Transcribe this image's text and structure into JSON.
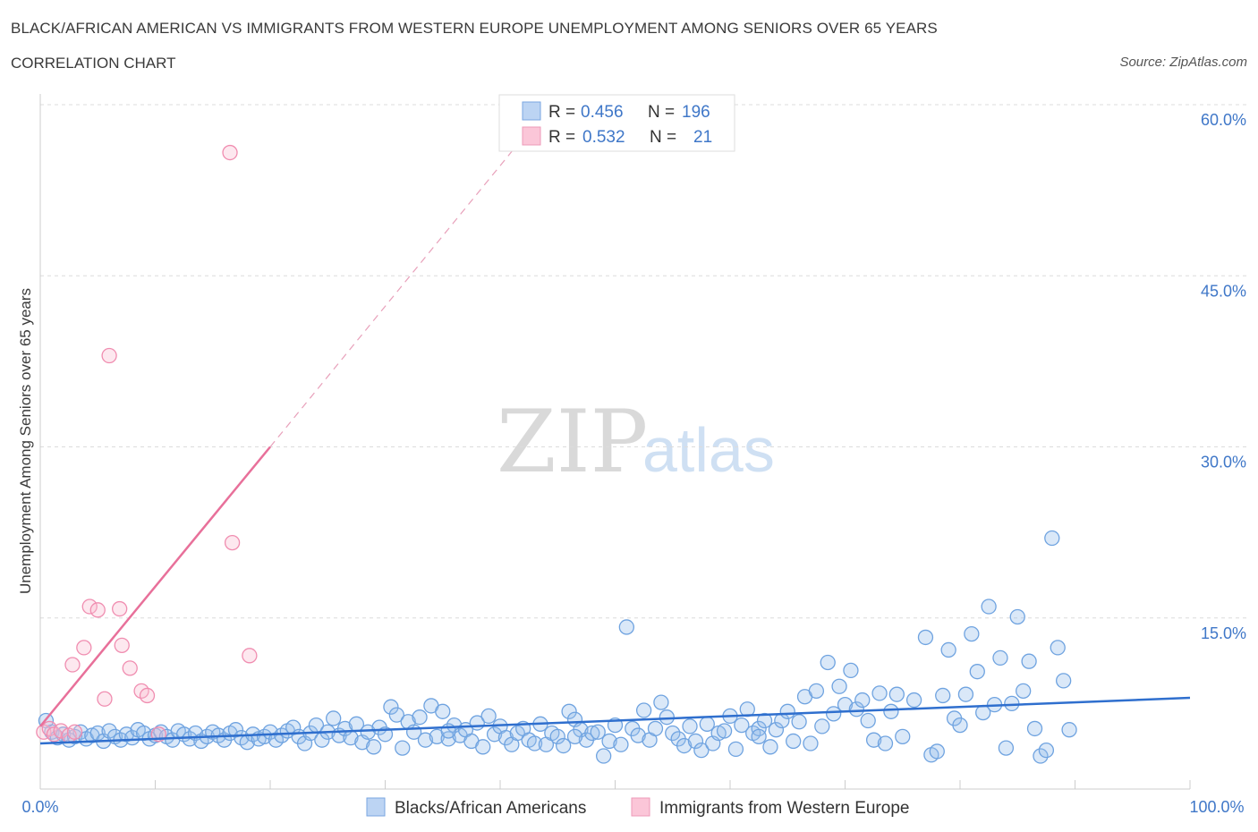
{
  "header": {
    "title": "BLACK/AFRICAN AMERICAN VS IMMIGRANTS FROM WESTERN EUROPE UNEMPLOYMENT AMONG SENIORS OVER 65 YEARS",
    "subtitle": "CORRELATION CHART",
    "source": "Source: ZipAtlas.com"
  },
  "watermark": {
    "zip": "ZIP",
    "atlas": "atlas"
  },
  "legend_top": {
    "rows": [
      {
        "r_label": "R =",
        "r_value": "0.456",
        "n_label": "N =",
        "n_value": "196"
      },
      {
        "r_label": "R =",
        "r_value": "0.532",
        "n_label": "N =",
        "n_value": "21"
      }
    ]
  },
  "legend_bottom": {
    "series1": "Blacks/African Americans",
    "series2": "Immigrants from Western Europe"
  },
  "chart_data": {
    "type": "scatter",
    "title": "BLACK/AFRICAN AMERICAN VS IMMIGRANTS FROM WESTERN EUROPE UNEMPLOYMENT AMONG SENIORS OVER 65 YEARS",
    "xlabel": "",
    "ylabel": "Unemployment Among Seniors over 65 years",
    "xlim": [
      0,
      100
    ],
    "ylim": [
      0,
      60
    ],
    "x_tick_labels": [
      "0.0%",
      "100.0%"
    ],
    "y_ticks": [
      15,
      30,
      45,
      60
    ],
    "y_tick_labels": [
      "15.0%",
      "30.0%",
      "45.0%",
      "60.0%"
    ],
    "colors": {
      "blue": "#6fa3e0",
      "blue_line": "#2f6fce",
      "pink": "#f08db0",
      "pink_line": "#e8709a"
    },
    "series": [
      {
        "name": "Blacks/African Americans",
        "R": 0.456,
        "N": 196,
        "trend": {
          "x": [
            0,
            100
          ],
          "y": [
            4.0,
            8.0
          ]
        },
        "points": [
          [
            0.5,
            6.0
          ],
          [
            1.0,
            5.0
          ],
          [
            1.5,
            4.5
          ],
          [
            2.0,
            4.8
          ],
          [
            2.5,
            4.3
          ],
          [
            3.0,
            4.6
          ],
          [
            3.5,
            5.0
          ],
          [
            4.0,
            4.4
          ],
          [
            4.5,
            4.7
          ],
          [
            5.0,
            4.9
          ],
          [
            5.5,
            4.2
          ],
          [
            6.0,
            5.1
          ],
          [
            6.5,
            4.6
          ],
          [
            7.0,
            4.3
          ],
          [
            7.5,
            4.8
          ],
          [
            8.0,
            4.5
          ],
          [
            8.5,
            5.2
          ],
          [
            9.0,
            4.9
          ],
          [
            9.5,
            4.4
          ],
          [
            10.0,
            4.7
          ],
          [
            10.5,
            5.0
          ],
          [
            11.0,
            4.6
          ],
          [
            11.5,
            4.3
          ],
          [
            12.0,
            5.1
          ],
          [
            12.5,
            4.8
          ],
          [
            13.0,
            4.4
          ],
          [
            13.5,
            4.9
          ],
          [
            14.0,
            4.2
          ],
          [
            14.5,
            4.6
          ],
          [
            15.0,
            5.0
          ],
          [
            15.5,
            4.7
          ],
          [
            16.0,
            4.3
          ],
          [
            16.5,
            4.9
          ],
          [
            17.0,
            5.2
          ],
          [
            17.5,
            4.5
          ],
          [
            18.0,
            4.1
          ],
          [
            18.5,
            4.8
          ],
          [
            19.0,
            4.4
          ],
          [
            19.5,
            4.6
          ],
          [
            20.0,
            5.0
          ],
          [
            20.5,
            4.3
          ],
          [
            21.0,
            4.7
          ],
          [
            21.5,
            5.1
          ],
          [
            22.0,
            5.4
          ],
          [
            22.5,
            4.6
          ],
          [
            23.0,
            4.0
          ],
          [
            23.5,
            4.9
          ],
          [
            24.0,
            5.6
          ],
          [
            24.5,
            4.3
          ],
          [
            25.0,
            5.0
          ],
          [
            25.5,
            6.2
          ],
          [
            26.0,
            4.7
          ],
          [
            26.5,
            5.3
          ],
          [
            27.0,
            4.5
          ],
          [
            27.5,
            5.7
          ],
          [
            28.0,
            4.1
          ],
          [
            28.5,
            5.0
          ],
          [
            29.0,
            3.7
          ],
          [
            29.5,
            5.4
          ],
          [
            30.0,
            4.8
          ],
          [
            30.5,
            7.2
          ],
          [
            31.0,
            6.5
          ],
          [
            31.5,
            3.6
          ],
          [
            32.0,
            5.9
          ],
          [
            32.5,
            5.0
          ],
          [
            33.0,
            6.3
          ],
          [
            33.5,
            4.3
          ],
          [
            34.0,
            7.3
          ],
          [
            34.5,
            4.6
          ],
          [
            35.0,
            6.8
          ],
          [
            35.5,
            4.4
          ],
          [
            36.0,
            5.6
          ],
          [
            36.5,
            4.7
          ],
          [
            37.0,
            5.2
          ],
          [
            37.5,
            4.2
          ],
          [
            38.0,
            5.8
          ],
          [
            38.5,
            3.7
          ],
          [
            39.0,
            6.4
          ],
          [
            39.5,
            4.8
          ],
          [
            40.0,
            5.5
          ],
          [
            40.5,
            4.5
          ],
          [
            41.0,
            3.9
          ],
          [
            41.5,
            4.9
          ],
          [
            42.0,
            5.3
          ],
          [
            42.5,
            4.3
          ],
          [
            43.0,
            4.0
          ],
          [
            43.5,
            5.7
          ],
          [
            44.0,
            3.9
          ],
          [
            44.5,
            4.9
          ],
          [
            45.0,
            4.6
          ],
          [
            45.5,
            3.8
          ],
          [
            46.0,
            6.8
          ],
          [
            46.5,
            6.1
          ],
          [
            47.0,
            5.2
          ],
          [
            47.5,
            4.3
          ],
          [
            48.0,
            4.9
          ],
          [
            48.5,
            5.0
          ],
          [
            49.0,
            2.9
          ],
          [
            49.5,
            4.2
          ],
          [
            50.0,
            5.6
          ],
          [
            50.5,
            3.9
          ],
          [
            51.0,
            14.2
          ],
          [
            51.5,
            5.3
          ],
          [
            52.0,
            4.7
          ],
          [
            52.5,
            6.9
          ],
          [
            53.0,
            4.3
          ],
          [
            53.5,
            5.3
          ],
          [
            54.0,
            7.6
          ],
          [
            54.5,
            6.3
          ],
          [
            55.0,
            4.9
          ],
          [
            55.5,
            4.4
          ],
          [
            56.0,
            3.8
          ],
          [
            56.5,
            5.5
          ],
          [
            57.0,
            4.2
          ],
          [
            57.5,
            3.4
          ],
          [
            58.0,
            5.7
          ],
          [
            58.5,
            4.0
          ],
          [
            59.0,
            4.9
          ],
          [
            59.5,
            5.1
          ],
          [
            60.0,
            6.4
          ],
          [
            60.5,
            3.5
          ],
          [
            61.0,
            5.6
          ],
          [
            61.5,
            7.0
          ],
          [
            62.0,
            4.9
          ],
          [
            62.5,
            5.3
          ],
          [
            63.0,
            6.0
          ],
          [
            63.5,
            3.7
          ],
          [
            64.0,
            5.2
          ],
          [
            64.5,
            6.0
          ],
          [
            65.0,
            6.8
          ],
          [
            65.5,
            4.2
          ],
          [
            66.0,
            5.9
          ],
          [
            66.5,
            8.1
          ],
          [
            67.0,
            4.0
          ],
          [
            67.5,
            8.6
          ],
          [
            68.0,
            5.5
          ],
          [
            68.5,
            11.1
          ],
          [
            69.0,
            6.6
          ],
          [
            69.5,
            9.0
          ],
          [
            70.0,
            7.4
          ],
          [
            70.5,
            10.4
          ],
          [
            71.0,
            7.0
          ],
          [
            71.5,
            7.8
          ],
          [
            72.0,
            6.0
          ],
          [
            72.5,
            4.3
          ],
          [
            73.0,
            8.4
          ],
          [
            73.5,
            4.0
          ],
          [
            74.0,
            6.8
          ],
          [
            74.5,
            8.3
          ],
          [
            75.0,
            4.6
          ],
          [
            76.0,
            7.8
          ],
          [
            77.0,
            13.3
          ],
          [
            77.5,
            3.0
          ],
          [
            78.0,
            3.3
          ],
          [
            78.5,
            8.2
          ],
          [
            79.0,
            12.2
          ],
          [
            79.5,
            6.2
          ],
          [
            80.0,
            5.6
          ],
          [
            80.5,
            8.3
          ],
          [
            81.0,
            13.6
          ],
          [
            81.5,
            10.3
          ],
          [
            82.0,
            6.7
          ],
          [
            82.5,
            16.0
          ],
          [
            83.0,
            7.4
          ],
          [
            83.5,
            11.5
          ],
          [
            84.0,
            3.6
          ],
          [
            84.5,
            7.5
          ],
          [
            85.0,
            15.1
          ],
          [
            85.5,
            8.6
          ],
          [
            86.0,
            11.2
          ],
          [
            86.5,
            5.3
          ],
          [
            87.0,
            2.9
          ],
          [
            87.5,
            3.4
          ],
          [
            88.0,
            22.0
          ],
          [
            88.5,
            12.4
          ],
          [
            89.0,
            9.5
          ],
          [
            89.5,
            5.2
          ],
          [
            62.5,
            4.6
          ],
          [
            46.5,
            4.6
          ],
          [
            35.5,
            5.1
          ]
        ]
      },
      {
        "name": "Immigrants from Western Europe",
        "R": 0.532,
        "N": 21,
        "trend": {
          "x": [
            0,
            20
          ],
          "y": [
            5.5,
            30.0
          ]
        },
        "trend_extension": {
          "x": [
            20,
            41.5
          ],
          "y": [
            30.0,
            56.5
          ]
        },
        "points": [
          [
            0.3,
            5.0
          ],
          [
            0.8,
            5.3
          ],
          [
            1.2,
            4.8
          ],
          [
            1.8,
            5.1
          ],
          [
            2.5,
            4.7
          ],
          [
            3.0,
            5.0
          ],
          [
            2.8,
            10.9
          ],
          [
            3.8,
            12.4
          ],
          [
            4.3,
            16.0
          ],
          [
            5.0,
            15.7
          ],
          [
            5.6,
            7.9
          ],
          [
            6.0,
            38.0
          ],
          [
            6.9,
            15.8
          ],
          [
            7.1,
            12.6
          ],
          [
            7.8,
            10.6
          ],
          [
            8.8,
            8.6
          ],
          [
            9.3,
            8.2
          ],
          [
            10.3,
            4.8
          ],
          [
            16.5,
            55.8
          ],
          [
            16.7,
            21.6
          ],
          [
            18.2,
            11.7
          ]
        ]
      }
    ]
  }
}
